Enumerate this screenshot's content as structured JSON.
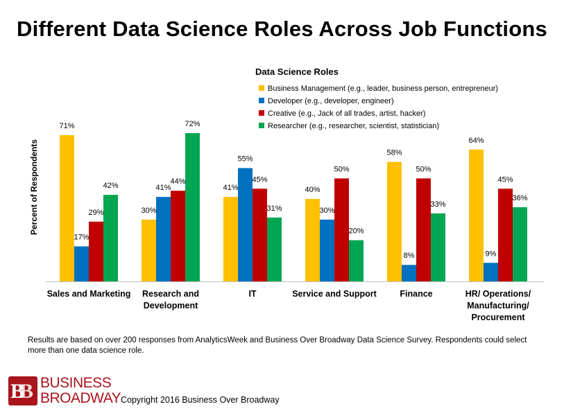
{
  "title": "Different Data Science Roles Across Job Functions",
  "chart_data": {
    "type": "bar",
    "title": "Different Data Science Roles Across Job Functions",
    "ylabel": "Percent of Respondents",
    "xlabel": "",
    "ylim": [
      0,
      75
    ],
    "grid": false,
    "legend": {
      "title": "Data Science Roles",
      "placement": "top-right"
    },
    "categories": [
      [
        "Sales and Marketing"
      ],
      [
        "Research and",
        "Development"
      ],
      [
        "IT"
      ],
      [
        "Service and Support"
      ],
      [
        "Finance"
      ],
      [
        "HR/ Operations/",
        "Manufacturing/",
        "Procurement"
      ]
    ],
    "series": [
      {
        "name": "Business Management (e.g., leader, business person,  entrepreneur)",
        "color": "#ffc000",
        "values": [
          71,
          30,
          41,
          40,
          58,
          64
        ]
      },
      {
        "name": "Developer (e.g., developer,  engineer)",
        "color": "#0070c0",
        "values": [
          17,
          41,
          55,
          30,
          8,
          9
        ]
      },
      {
        "name": "Creative (e.g., Jack of all trades, artist, hacker)",
        "color": "#c00000",
        "values": [
          29,
          44,
          45,
          50,
          50,
          45
        ]
      },
      {
        "name": "Researcher (e.g., researcher, scientist, statistician)",
        "color": "#00a651",
        "values": [
          42,
          72,
          31,
          20,
          33,
          36
        ]
      }
    ],
    "value_suffix": "%"
  },
  "footnote": "Results are based on over 200 responses from AnalyticsWeek and  Business Over Broadway  Data Science Survey.  Respondents could select more than one data science role.",
  "logo": {
    "letters": [
      "B",
      "B"
    ],
    "line1": "BUSINESS",
    "line2": "BROADWAY"
  },
  "copyright": "Copyright 2016 Business Over Broadway"
}
